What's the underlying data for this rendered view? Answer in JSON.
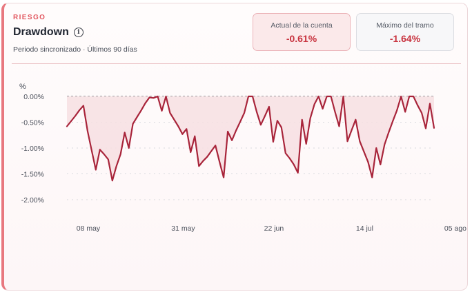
{
  "card": {
    "eyebrow": "RIESGO",
    "title": "Drawdown",
    "info_icon": "info-icon",
    "subtitle": "Periodo sincronizado · Últimos 90 días"
  },
  "stats": {
    "current": {
      "label": "Actual de la cuenta",
      "value": "-0.61%"
    },
    "max": {
      "label": "Máximo del tramo",
      "value": "-1.64%"
    }
  },
  "colors": {
    "accent": "#e8787f",
    "line": "#a8243a",
    "fill": "#f7dfe2",
    "negative": "#c8323e"
  },
  "chart_data": {
    "type": "area",
    "ylabel": "%",
    "ylim": [
      -2.0,
      0.0
    ],
    "y_ticks": [
      "0.00%",
      "-0.50%",
      "-1.00%",
      "-1.50%",
      "-2.00%"
    ],
    "y_tick_values": [
      0.0,
      -0.5,
      -1.0,
      -1.5,
      -2.0
    ],
    "x_ticks": [
      "08 may",
      "31 may",
      "22 jun",
      "14 jul",
      "05 ago"
    ],
    "x_tick_index": [
      2,
      25,
      47,
      69,
      91
    ],
    "grid": true,
    "series": [
      {
        "values": [
          -0.58,
          -0.48,
          -0.38,
          -0.27,
          -0.18,
          -0.67,
          -1.05,
          -1.42,
          -1.03,
          -1.12,
          -1.22,
          -1.63,
          -1.35,
          -1.12,
          -0.7,
          -1.0,
          -0.53,
          -0.4,
          -0.27,
          -0.13,
          -0.02,
          -0.03,
          0.0,
          -0.28,
          0.0,
          -0.32,
          -0.45,
          -0.58,
          -0.73,
          -0.63,
          -1.08,
          -0.77,
          -1.35,
          -1.25,
          -1.17,
          -1.06,
          -0.95,
          -1.27,
          -1.57,
          -0.68,
          -0.85,
          -0.66,
          -0.49,
          -0.32,
          0.0,
          0.0,
          -0.3,
          -0.55,
          -0.38,
          -0.2,
          -0.88,
          -0.47,
          -0.6,
          -1.1,
          -1.2,
          -1.32,
          -1.48,
          -0.45,
          -0.92,
          -0.42,
          -0.15,
          0.0,
          -0.24,
          0.0,
          0.0,
          -0.3,
          -0.58,
          0.0,
          -0.87,
          -0.66,
          -0.45,
          -0.87,
          -1.07,
          -1.27,
          -1.57,
          -1.0,
          -1.32,
          -0.93,
          -0.7,
          -0.48,
          -0.27,
          0.0,
          -0.3,
          0.0,
          0.0,
          -0.17,
          -0.32,
          -0.62,
          -0.14,
          -0.61
        ]
      }
    ]
  }
}
